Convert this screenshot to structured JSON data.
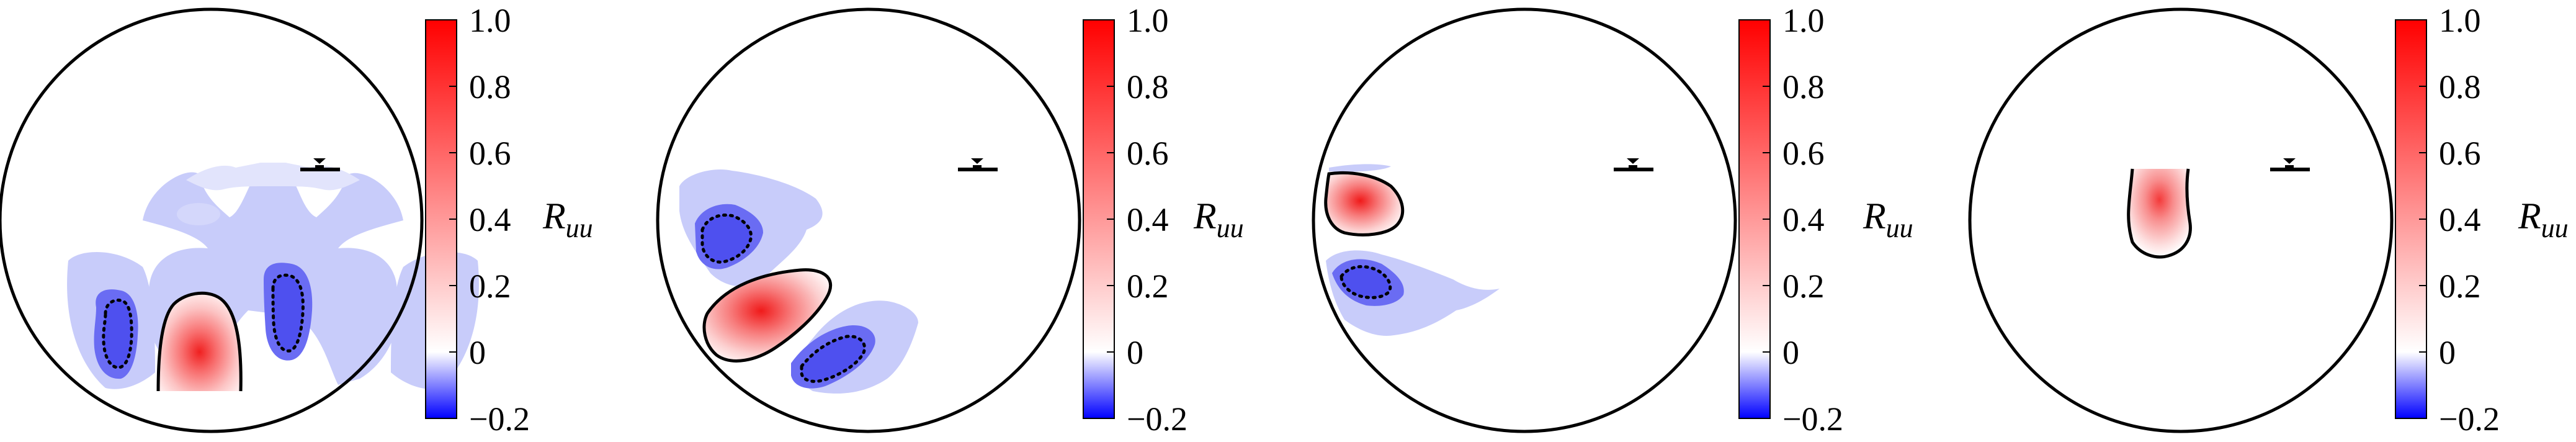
{
  "chart_data": {
    "type": "heatmap",
    "panels": [
      {
        "id": "panel-1",
        "colorbar_label": {
          "main": "R",
          "sub": "uu"
        }
      },
      {
        "id": "panel-2",
        "colorbar_label": {
          "main": "R",
          "sub": "uu"
        }
      },
      {
        "id": "panel-3",
        "colorbar_label": {
          "main": "R",
          "sub": "uu"
        }
      },
      {
        "id": "panel-4",
        "colorbar_label": {
          "main": "R",
          "sub": "uu"
        }
      }
    ],
    "colorbar": {
      "range": [
        -0.2,
        1.0
      ],
      "ticks": [
        1.0,
        0.8,
        0.6,
        0.4,
        0.2,
        0,
        -0.2
      ],
      "tick_labels": [
        "1.0",
        "0.8",
        "0.6",
        "0.4",
        "0.2",
        "0",
        "−0.2"
      ],
      "colors": {
        "min": "#0000ff",
        "zero": "#ffffff",
        "max": "#ff0000"
      }
    }
  }
}
